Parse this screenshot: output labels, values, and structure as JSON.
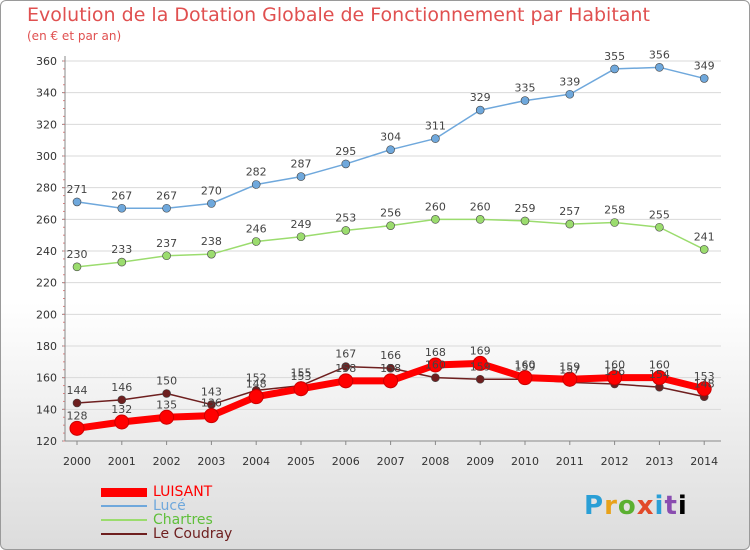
{
  "chart_data": {
    "type": "line",
    "title": "Evolution de la Dotation Globale de Fonctionnement par Habitant",
    "subtitle": "(en € et par an)",
    "x": [
      2000,
      2001,
      2002,
      2003,
      2004,
      2005,
      2006,
      2007,
      2008,
      2009,
      2010,
      2011,
      2012,
      2013,
      2014
    ],
    "ylim": [
      120,
      360
    ],
    "yticks": [
      120,
      140,
      160,
      180,
      200,
      220,
      240,
      260,
      280,
      300,
      320,
      340,
      360
    ],
    "grid": "horizontal",
    "legend_position": "bottom-left",
    "series": [
      {
        "name": "Le Coudray",
        "color": "#6e1f1f",
        "width": 1.5,
        "marker": 4,
        "values": [
          144,
          146,
          150,
          143,
          152,
          155,
          167,
          166,
          160,
          159,
          159,
          157,
          156,
          154,
          148
        ]
      },
      {
        "name": "Chartres",
        "color": "#9bdc6e",
        "width": 1.5,
        "marker": 4,
        "values": [
          230,
          233,
          237,
          238,
          246,
          249,
          253,
          256,
          260,
          260,
          259,
          257,
          258,
          255,
          241
        ]
      },
      {
        "name": "Lucé",
        "color": "#6fa8dc",
        "width": 1.5,
        "marker": 4,
        "values": [
          271,
          267,
          267,
          270,
          282,
          287,
          295,
          304,
          311,
          329,
          335,
          339,
          355,
          356,
          349
        ]
      },
      {
        "name": "LUISANT",
        "color": "#ff0000",
        "width": 7,
        "marker": 7,
        "values": [
          128,
          132,
          135,
          136,
          148,
          153,
          158,
          158,
          168,
          169,
          160,
          159,
          160,
          160,
          153
        ]
      }
    ]
  },
  "legend_order": [
    3,
    2,
    1,
    0
  ],
  "brand": {
    "letters": [
      "P",
      "r",
      "o",
      "x",
      "i",
      "t",
      "i"
    ]
  }
}
